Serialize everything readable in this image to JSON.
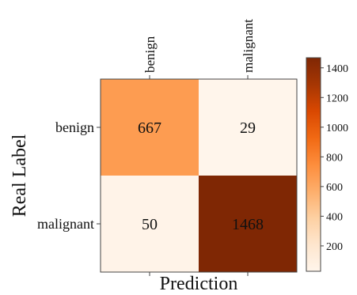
{
  "chart_data": {
    "type": "heatmap",
    "xlabel": "Prediction",
    "ylabel": "Real Label",
    "x_categories": [
      "benign",
      "malignant"
    ],
    "y_categories": [
      "benign",
      "malignant"
    ],
    "values": [
      [
        667,
        29
      ],
      [
        50,
        1468
      ]
    ],
    "x_tick_position": "top",
    "colorbar": {
      "vmin": 29,
      "vmax": 1468,
      "ticks": [
        200,
        400,
        600,
        800,
        1000,
        1200,
        1400
      ],
      "colors": {
        "low": "#fff5eb",
        "mid": "#fd8d3c",
        "high": "#7f2704"
      }
    }
  }
}
